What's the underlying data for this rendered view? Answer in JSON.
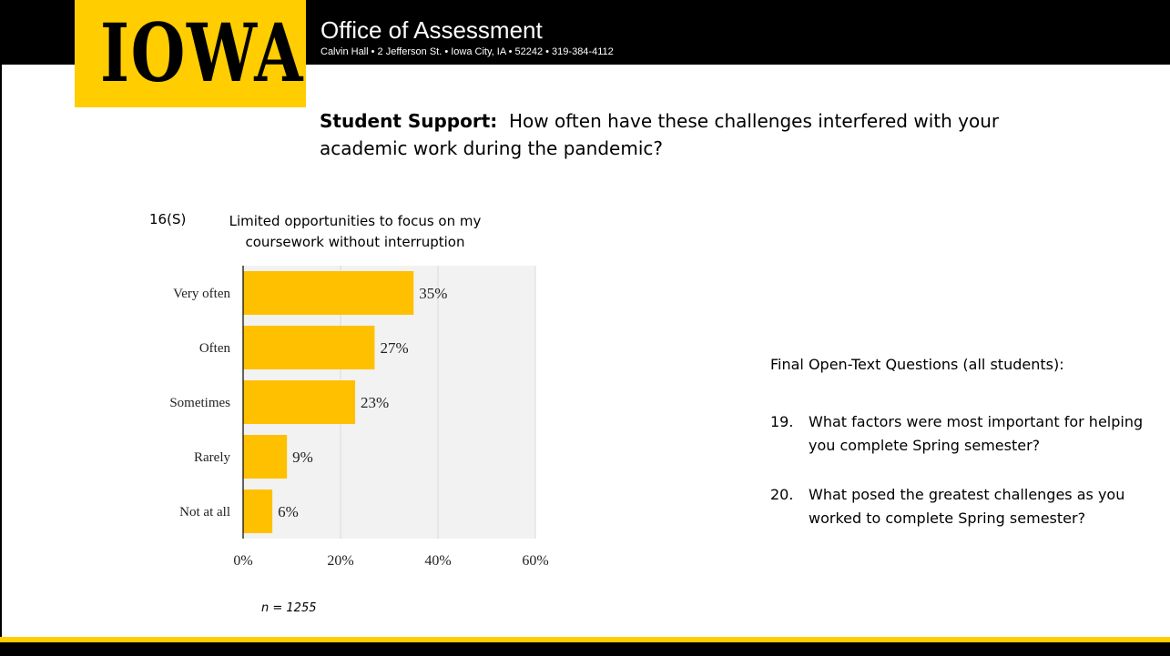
{
  "header": {
    "logo_text": "IOWA",
    "office_title": "Office of Assessment",
    "address": "Calvin Hall • 2 Jefferson St. • Iowa City, IA • 52242 • 319-384-4112"
  },
  "question": {
    "label": "Student Support:",
    "text": "How often have these challenges interfered with your academic work during the pandemic?"
  },
  "item_number": "16(S)",
  "colors": {
    "gold": "#FFCD00",
    "bar": "#FFC000",
    "black": "#000000",
    "plot_bg": "#F2F2F2"
  },
  "chart_data": {
    "type": "bar",
    "orientation": "horizontal",
    "title": "Limited opportunities to focus on my coursework without interruption",
    "categories": [
      "Very often",
      "Often",
      "Sometimes",
      "Rarely",
      "Not at all"
    ],
    "values": [
      35,
      27,
      23,
      9,
      6
    ],
    "value_labels": [
      "35%",
      "27%",
      "23%",
      "9%",
      "6%"
    ],
    "x_ticks": [
      "0%",
      "20%",
      "40%",
      "60%"
    ],
    "xlim": [
      0,
      60
    ],
    "grid": true,
    "note": "n = 1255"
  },
  "open_text": {
    "heading": "Final Open-Text Questions (all students):",
    "items": [
      {
        "num": "19.",
        "text": "What factors were most important for helping you complete Spring semester?"
      },
      {
        "num": "20.",
        "text": "What posed the greatest challenges as you worked to complete Spring semester?"
      }
    ]
  }
}
